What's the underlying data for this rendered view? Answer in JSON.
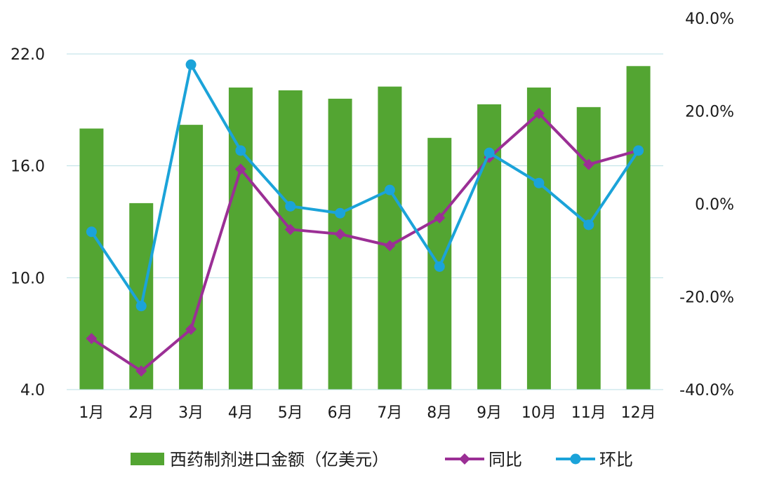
{
  "chart_data": {
    "type": "bar",
    "categories": [
      "1月",
      "2月",
      "3月",
      "4月",
      "5月",
      "6月",
      "7月",
      "8月",
      "9月",
      "10月",
      "11月",
      "12月"
    ],
    "left_axis": {
      "ylim": [
        4.0,
        22.0
      ],
      "ticks": [
        "4.0",
        "10.0",
        "16.0",
        "22.0"
      ],
      "tick_values": [
        4,
        10,
        16,
        22
      ]
    },
    "right_axis": {
      "ylim": [
        -40.0,
        40.0
      ],
      "ticks": [
        "-40.0%",
        "-20.0%",
        "0.0%",
        "20.0%",
        "40.0%"
      ],
      "tick_values": [
        -40,
        -20,
        0,
        20,
        40
      ]
    },
    "series": [
      {
        "name": "西药制剂进口金额（亿美元）",
        "type": "bar",
        "axis": "left",
        "color": "#53a532",
        "values": [
          18.0,
          14.0,
          18.2,
          20.2,
          20.05,
          19.6,
          20.25,
          17.5,
          19.3,
          20.2,
          19.15,
          21.35
        ]
      },
      {
        "name": "同比",
        "type": "line",
        "axis": "right",
        "color": "#9b2f95",
        "marker": "diamond",
        "values": [
          -29.0,
          -36.0,
          -27.0,
          7.5,
          -5.5,
          -6.5,
          -9.0,
          -3.0,
          10.0,
          19.5,
          8.5,
          11.5
        ]
      },
      {
        "name": "环比",
        "type": "line",
        "axis": "right",
        "color": "#1ba3d9",
        "marker": "circle",
        "values": [
          -6.0,
          -22.0,
          30.0,
          11.5,
          -0.5,
          -2.0,
          3.0,
          -13.5,
          11.0,
          4.5,
          -4.5,
          11.5
        ]
      }
    ],
    "grid": true,
    "legend": "bottom"
  }
}
